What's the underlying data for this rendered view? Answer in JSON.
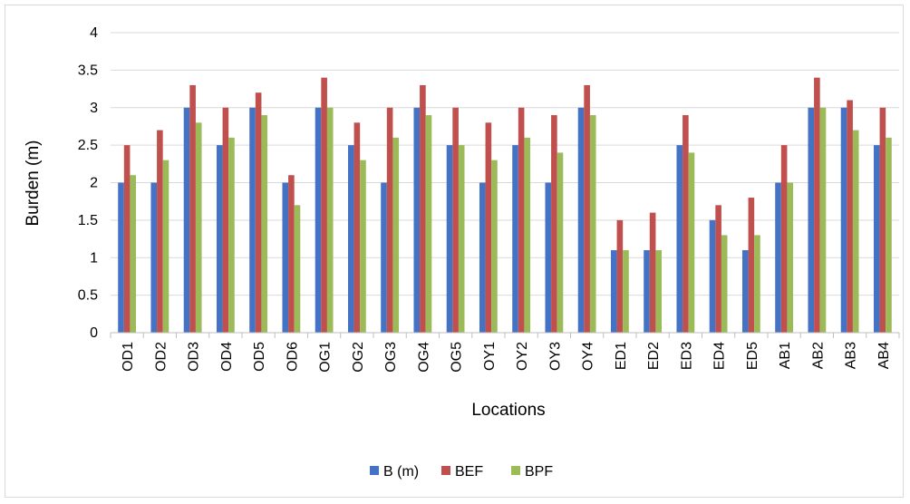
{
  "chart_data": {
    "type": "bar",
    "title": "",
    "xlabel": "Locations",
    "ylabel": "Burden (m)",
    "ylim": [
      0,
      4
    ],
    "yticks": [
      0,
      0.5,
      1,
      1.5,
      2,
      2.5,
      3,
      3.5,
      4
    ],
    "ytick_labels": [
      "0",
      "0.5",
      "1",
      "1.5",
      "2",
      "2.5",
      "3",
      "3.5",
      "4"
    ],
    "grid": "horizontal",
    "legend_position": "bottom",
    "categories": [
      "OD1",
      "OD2",
      "OD3",
      "OD4",
      "OD5",
      "OD6",
      "OG1",
      "OG2",
      "OG3",
      "OG4",
      "OG5",
      "OY1",
      "OY2",
      "OY3",
      "OY4",
      "ED1",
      "ED2",
      "ED3",
      "ED4",
      "ED5",
      "AB1",
      "AB2",
      "AB3",
      "AB4"
    ],
    "series": [
      {
        "name": "B (m)",
        "color": "#4472c4",
        "values": [
          2,
          2,
          3,
          2.5,
          3,
          2,
          3,
          2.5,
          2,
          3,
          2.5,
          2,
          2.5,
          2,
          3,
          1.1,
          1.1,
          2.5,
          1.5,
          1.1,
          2,
          3,
          3,
          2.5
        ]
      },
      {
        "name": "BEF",
        "color": "#c0504d",
        "values": [
          2.5,
          2.7,
          3.3,
          3,
          3.2,
          2.1,
          3.4,
          2.8,
          3,
          3.3,
          3,
          2.8,
          3,
          2.9,
          3.3,
          1.5,
          1.6,
          2.9,
          1.7,
          1.8,
          2.5,
          3.4,
          3.1,
          3
        ]
      },
      {
        "name": "BPF",
        "color": "#9bbb59",
        "values": [
          2.1,
          2.3,
          2.8,
          2.6,
          2.9,
          1.7,
          3,
          2.3,
          2.6,
          2.9,
          2.5,
          2.3,
          2.6,
          2.4,
          2.9,
          1.1,
          1.1,
          2.4,
          1.3,
          1.3,
          2,
          3,
          2.7,
          2.6
        ]
      }
    ]
  }
}
